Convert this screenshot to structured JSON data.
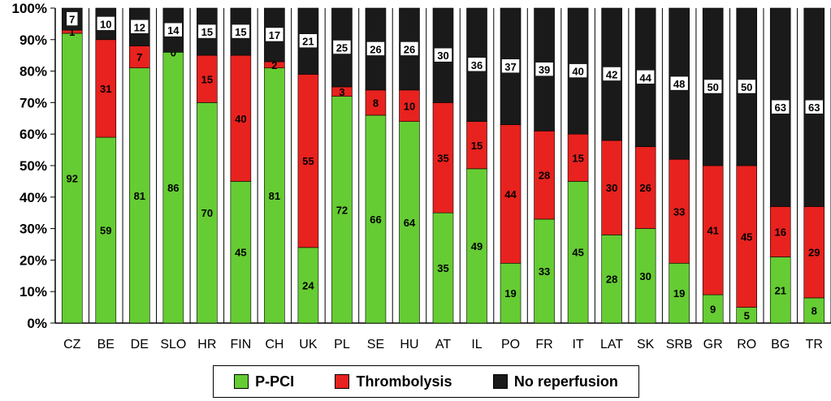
{
  "chart_data": {
    "type": "bar",
    "stacked": true,
    "percent": true,
    "categories": [
      "CZ",
      "BE",
      "DE",
      "SLO",
      "HR",
      "FIN",
      "CH",
      "UK",
      "PL",
      "SE",
      "HU",
      "AT",
      "IL",
      "PO",
      "FR",
      "IT",
      "LAT",
      "SK",
      "SRB",
      "GR",
      "RO",
      "BG",
      "TR"
    ],
    "series": [
      {
        "name": "P-PCI",
        "color": "#66cc33",
        "values": [
          92,
          59,
          81,
          86,
          70,
          45,
          81,
          24,
          72,
          66,
          64,
          35,
          49,
          19,
          33,
          45,
          28,
          30,
          19,
          9,
          5,
          21,
          8
        ],
        "labels": [
          "92",
          "59",
          "81",
          "86",
          "70",
          "45",
          "81",
          "24",
          "72",
          "66",
          "64",
          "35",
          "49",
          "19",
          "33",
          "45",
          "28",
          "30",
          "19",
          "9",
          "5",
          "21",
          "8"
        ]
      },
      {
        "name": "Thrombolysis",
        "color": "#e8221e",
        "values": [
          1,
          31,
          7,
          0,
          15,
          40,
          2,
          55,
          3,
          8,
          10,
          35,
          15,
          44,
          28,
          15,
          30,
          26,
          33,
          41,
          45,
          16,
          29
        ],
        "labels": [
          "1",
          "31",
          "7",
          "0",
          "15",
          "40",
          "2",
          "55",
          "3",
          "8",
          "10",
          "35",
          "15",
          "44",
          "28",
          "15",
          "30",
          "26",
          "33",
          "41",
          "45",
          "16",
          "29"
        ]
      },
      {
        "name": "No reperfusion",
        "color": "#1a1a1a",
        "values": [
          7,
          10,
          12,
          14,
          15,
          15,
          17,
          21,
          25,
          26,
          26,
          30,
          36,
          37,
          39,
          40,
          42,
          44,
          48,
          50,
          50,
          63,
          63
        ],
        "labels": [
          "7",
          "10",
          "12",
          "14",
          "15",
          "15",
          "17",
          "21",
          "25",
          "26",
          "26",
          "30",
          "36",
          "37",
          "39",
          "40",
          "42",
          "44",
          "48",
          "50",
          "50",
          "63",
          "63"
        ]
      }
    ],
    "yticks": [
      "0%",
      "10%",
      "20%",
      "30%",
      "40%",
      "50%",
      "60%",
      "70%",
      "80%",
      "90%",
      "100%"
    ],
    "ylim": [
      0,
      100
    ],
    "grid": true,
    "legend": "bottom",
    "title": "",
    "xlabel": "",
    "ylabel": ""
  }
}
